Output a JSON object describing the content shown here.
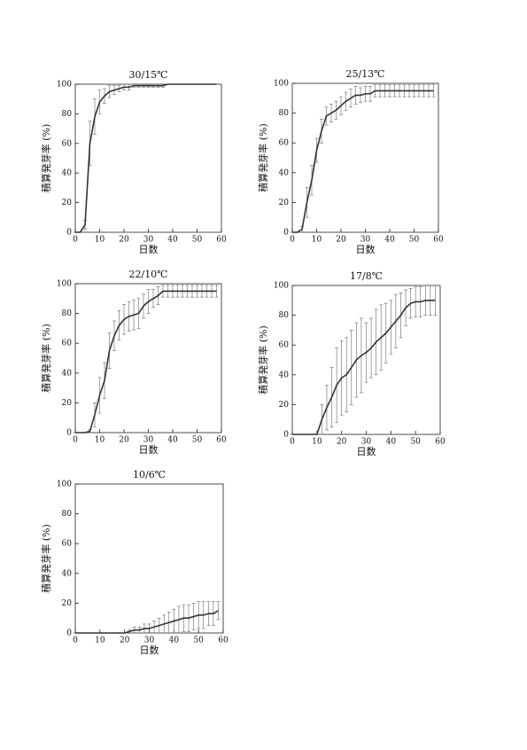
{
  "chart_data": [
    {
      "type": "line",
      "title": "30/15℃",
      "x_label": "日数",
      "y_label": "積算発芽率 (%)",
      "color": "#333333",
      "x": [
        0,
        2,
        4,
        6,
        8,
        10,
        12,
        14,
        16,
        18,
        20,
        22,
        24,
        26,
        28,
        30,
        32,
        34,
        36,
        38,
        40,
        42,
        44,
        46,
        48,
        50,
        52,
        54,
        56,
        58
      ],
      "values": [
        0,
        0,
        5,
        60,
        78,
        88,
        92,
        95,
        96,
        97,
        98,
        98,
        99,
        99,
        99,
        99,
        99,
        99,
        99,
        100,
        100,
        100,
        100,
        100,
        100,
        100,
        100,
        100,
        100,
        100
      ],
      "errors": [
        0,
        0,
        3,
        15,
        12,
        8,
        5,
        4,
        3,
        2,
        2,
        2,
        1,
        1,
        1,
        1,
        1,
        1,
        1,
        0,
        0,
        0,
        0,
        0,
        0,
        0,
        0,
        0,
        0,
        0
      ],
      "xlim": [
        0,
        60
      ],
      "ylim": [
        0,
        100
      ],
      "xticks": [
        0,
        10,
        20,
        30,
        40,
        50,
        60
      ],
      "yticks": [
        0,
        20,
        40,
        60,
        80,
        100
      ]
    },
    {
      "type": "line",
      "title": "25/13℃",
      "x_label": "日数",
      "y_label": "積算発芽率 (%)",
      "color": "#333333",
      "x": [
        0,
        2,
        4,
        6,
        8,
        10,
        12,
        14,
        16,
        18,
        20,
        22,
        24,
        26,
        28,
        30,
        32,
        34,
        36,
        38,
        40,
        42,
        44,
        46,
        48,
        50,
        52,
        54,
        56,
        58
      ],
      "values": [
        0,
        0,
        2,
        20,
        35,
        55,
        68,
        78,
        80,
        82,
        85,
        88,
        90,
        92,
        92,
        93,
        93,
        95,
        95,
        95,
        95,
        95,
        95,
        95,
        95,
        95,
        95,
        95,
        95,
        95
      ],
      "errors": [
        0,
        0,
        2,
        10,
        10,
        8,
        8,
        6,
        6,
        6,
        6,
        6,
        6,
        6,
        5,
        5,
        5,
        4,
        4,
        4,
        4,
        4,
        4,
        4,
        4,
        4,
        4,
        4,
        4,
        4
      ],
      "xlim": [
        0,
        60
      ],
      "ylim": [
        0,
        100
      ],
      "xticks": [
        0,
        10,
        20,
        30,
        40,
        50,
        60
      ],
      "yticks": [
        0,
        20,
        40,
        60,
        80,
        100
      ]
    },
    {
      "type": "line",
      "title": "22/10℃",
      "x_label": "日数",
      "y_label": "積算発芽率 (%)",
      "color": "#333333",
      "x": [
        0,
        2,
        4,
        6,
        8,
        10,
        12,
        14,
        16,
        18,
        20,
        22,
        24,
        26,
        28,
        30,
        32,
        34,
        36,
        38,
        40,
        42,
        44,
        46,
        48,
        50,
        52,
        54,
        56,
        58
      ],
      "values": [
        0,
        0,
        0,
        1,
        12,
        25,
        35,
        55,
        65,
        72,
        76,
        78,
        79,
        80,
        85,
        88,
        90,
        92,
        95,
        95,
        95,
        95,
        95,
        95,
        95,
        95,
        95,
        95,
        95,
        95
      ],
      "errors": [
        0,
        0,
        0,
        1,
        8,
        12,
        12,
        12,
        10,
        10,
        10,
        10,
        10,
        10,
        8,
        8,
        6,
        6,
        4,
        4,
        4,
        4,
        4,
        4,
        4,
        4,
        4,
        4,
        4,
        4
      ],
      "xlim": [
        0,
        60
      ],
      "ylim": [
        0,
        100
      ],
      "xticks": [
        0,
        10,
        20,
        30,
        40,
        50,
        60
      ],
      "yticks": [
        0,
        20,
        40,
        60,
        80,
        100
      ]
    },
    {
      "type": "line",
      "title": "17/8℃",
      "x_label": "日数",
      "y_label": "積算発芽率 (%)",
      "color": "#333333",
      "x": [
        0,
        2,
        4,
        6,
        8,
        10,
        12,
        14,
        16,
        18,
        20,
        22,
        24,
        26,
        28,
        30,
        32,
        34,
        36,
        38,
        40,
        42,
        44,
        46,
        48,
        50,
        52,
        54,
        56,
        58
      ],
      "values": [
        0,
        0,
        0,
        0,
        0,
        0,
        10,
        18,
        25,
        33,
        38,
        40,
        45,
        50,
        53,
        55,
        58,
        62,
        65,
        68,
        72,
        76,
        80,
        85,
        88,
        89,
        89,
        90,
        90,
        90
      ],
      "errors": [
        0,
        0,
        0,
        0,
        0,
        0,
        10,
        15,
        20,
        25,
        25,
        25,
        25,
        25,
        25,
        20,
        20,
        22,
        22,
        20,
        18,
        18,
        15,
        12,
        10,
        10,
        10,
        10,
        10,
        10
      ],
      "xlim": [
        0,
        60
      ],
      "ylim": [
        0,
        100
      ],
      "xticks": [
        0,
        10,
        20,
        30,
        40,
        50,
        60
      ],
      "yticks": [
        0,
        20,
        40,
        60,
        80,
        100
      ]
    },
    {
      "type": "line",
      "title": "10/6℃",
      "x_label": "日数",
      "y_label": "積算発芽率 (%)",
      "color": "#333333",
      "x": [
        0,
        2,
        4,
        6,
        8,
        10,
        12,
        14,
        16,
        18,
        20,
        22,
        24,
        26,
        28,
        30,
        32,
        34,
        36,
        38,
        40,
        42,
        44,
        46,
        48,
        50,
        52,
        54,
        56,
        58
      ],
      "values": [
        0,
        0,
        0,
        0,
        0,
        0,
        0,
        0,
        0,
        0,
        0,
        1,
        2,
        2,
        3,
        3,
        4,
        5,
        6,
        7,
        8,
        9,
        10,
        10,
        11,
        12,
        12,
        13,
        13,
        15
      ],
      "errors": [
        0,
        0,
        0,
        0,
        0,
        0,
        0,
        0,
        0,
        0,
        0,
        1,
        2,
        2,
        3,
        3,
        4,
        5,
        6,
        7,
        8,
        9,
        9,
        9,
        9,
        9,
        9,
        8,
        8,
        6
      ],
      "xlim": [
        0,
        60
      ],
      "ylim": [
        0,
        100
      ],
      "xticks": [
        0,
        10,
        20,
        30,
        40,
        50,
        60
      ],
      "yticks": [
        0,
        20,
        40,
        60,
        80,
        100
      ]
    }
  ]
}
